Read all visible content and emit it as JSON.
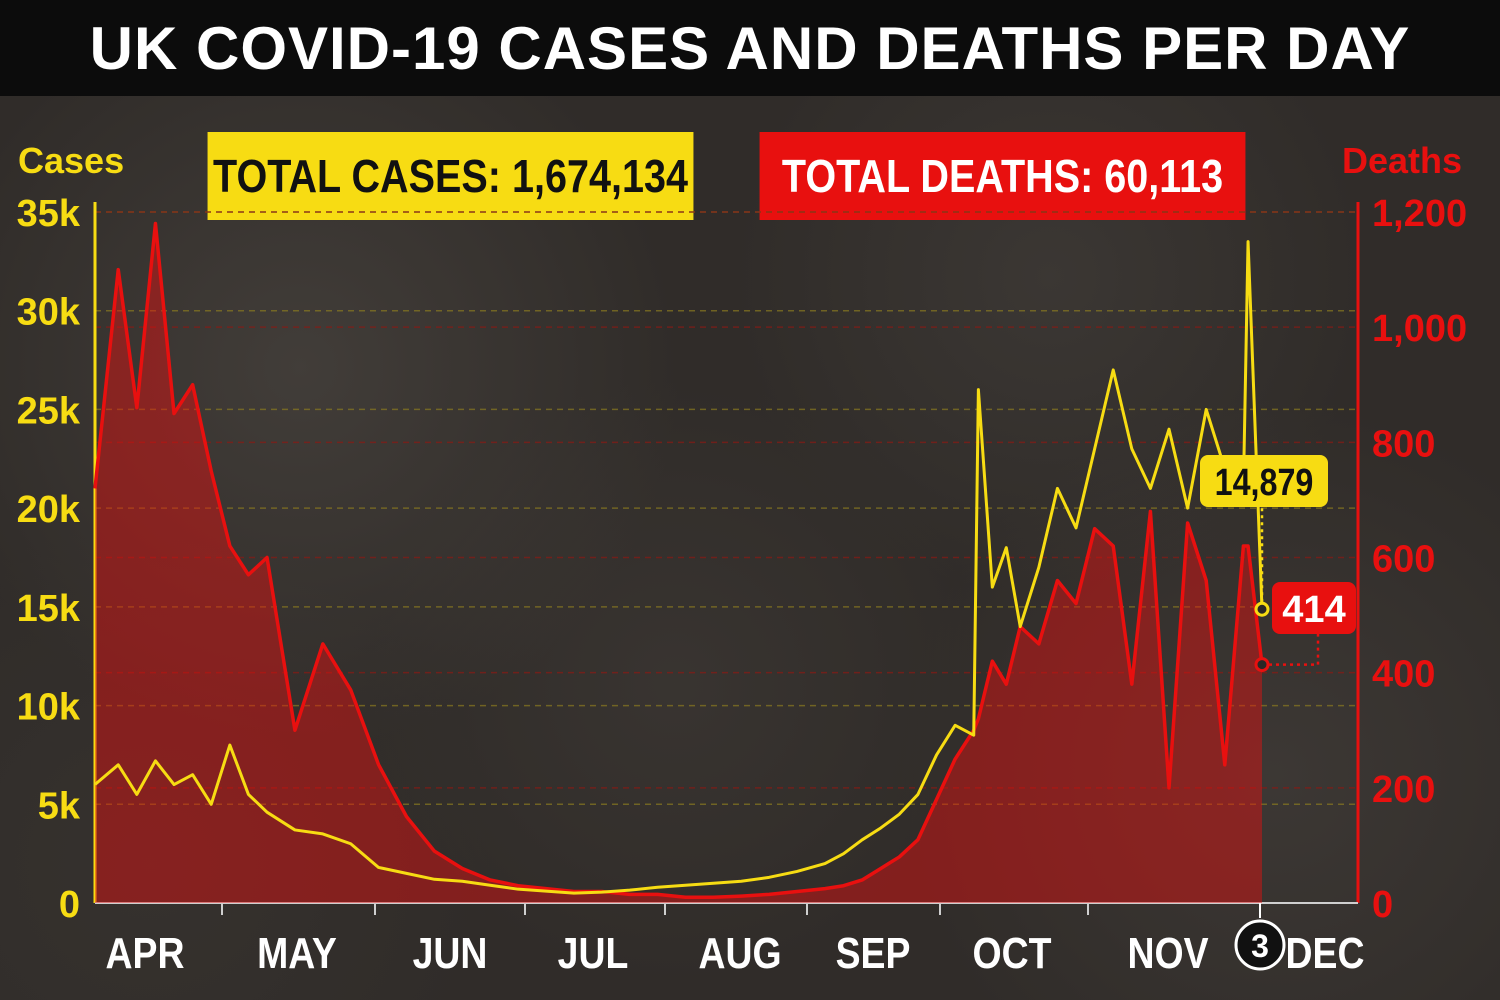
{
  "title": "UK COVID-19 CASES AND DEATHS PER DAY",
  "totals": {
    "cases": "TOTAL CASES: 1,674,134",
    "deaths": "TOTAL DEATHS: 60,113"
  },
  "colors": {
    "cases": "#f7dc13",
    "deaths": "#e8100f",
    "title_bg": "#0c0c0c",
    "background": "#302c29"
  },
  "chart_data": {
    "type": "line",
    "title": "UK COVID-19 CASES AND DEATHS PER DAY",
    "x_axis": {
      "months": [
        "APR",
        "MAY",
        "JUN",
        "JUL",
        "AUG",
        "SEP",
        "OCT",
        "NOV",
        "DEC"
      ],
      "marked_day": "3",
      "range": [
        "2020-03-27",
        "2020-12-03"
      ]
    },
    "y_axis_left": {
      "label": "Cases",
      "ticks": [
        "0",
        "5k",
        "10k",
        "15k",
        "20k",
        "25k",
        "30k",
        "35k"
      ],
      "range": [
        0,
        35000
      ]
    },
    "y_axis_right": {
      "label": "Deaths",
      "ticks": [
        "0",
        "200",
        "400",
        "600",
        "800",
        "1,000",
        "1,200"
      ],
      "range": [
        0,
        1200
      ]
    },
    "grid": true,
    "series": [
      {
        "name": "Cases",
        "axis": "left",
        "points": [
          [
            "2020-03-27",
            6000
          ],
          [
            "2020-04-01",
            7000
          ],
          [
            "2020-04-05",
            5500
          ],
          [
            "2020-04-09",
            7200
          ],
          [
            "2020-04-13",
            6000
          ],
          [
            "2020-04-17",
            6500
          ],
          [
            "2020-04-21",
            5000
          ],
          [
            "2020-04-25",
            8000
          ],
          [
            "2020-04-29",
            5500
          ],
          [
            "2020-05-03",
            4600
          ],
          [
            "2020-05-09",
            3700
          ],
          [
            "2020-05-15",
            3500
          ],
          [
            "2020-05-21",
            3000
          ],
          [
            "2020-05-27",
            1800
          ],
          [
            "2020-06-02",
            1500
          ],
          [
            "2020-06-08",
            1200
          ],
          [
            "2020-06-14",
            1100
          ],
          [
            "2020-06-20",
            900
          ],
          [
            "2020-06-26",
            700
          ],
          [
            "2020-07-02",
            600
          ],
          [
            "2020-07-08",
            500
          ],
          [
            "2020-07-14",
            550
          ],
          [
            "2020-07-20",
            650
          ],
          [
            "2020-07-26",
            800
          ],
          [
            "2020-08-01",
            900
          ],
          [
            "2020-08-07",
            1000
          ],
          [
            "2020-08-13",
            1100
          ],
          [
            "2020-08-19",
            1300
          ],
          [
            "2020-08-25",
            1600
          ],
          [
            "2020-08-31",
            2000
          ],
          [
            "2020-09-04",
            2500
          ],
          [
            "2020-09-08",
            3200
          ],
          [
            "2020-09-12",
            3800
          ],
          [
            "2020-09-16",
            4500
          ],
          [
            "2020-09-20",
            5500
          ],
          [
            "2020-09-24",
            7500
          ],
          [
            "2020-09-28",
            9000
          ],
          [
            "2020-10-02",
            8500
          ],
          [
            "2020-10-03",
            26000
          ],
          [
            "2020-10-06",
            16000
          ],
          [
            "2020-10-09",
            18000
          ],
          [
            "2020-10-12",
            14000
          ],
          [
            "2020-10-16",
            17000
          ],
          [
            "2020-10-20",
            21000
          ],
          [
            "2020-10-24",
            19000
          ],
          [
            "2020-10-28",
            23000
          ],
          [
            "2020-11-01",
            27000
          ],
          [
            "2020-11-05",
            23000
          ],
          [
            "2020-11-09",
            21000
          ],
          [
            "2020-11-13",
            24000
          ],
          [
            "2020-11-17",
            20000
          ],
          [
            "2020-11-21",
            25000
          ],
          [
            "2020-11-25",
            22000
          ],
          [
            "2020-11-29",
            21000
          ],
          [
            "2020-11-30",
            33500
          ],
          [
            "2020-12-03",
            14879
          ]
        ]
      },
      {
        "name": "Deaths",
        "axis": "right",
        "points": [
          [
            "2020-03-27",
            720
          ],
          [
            "2020-04-01",
            1100
          ],
          [
            "2020-04-05",
            860
          ],
          [
            "2020-04-09",
            1180
          ],
          [
            "2020-04-13",
            850
          ],
          [
            "2020-04-17",
            900
          ],
          [
            "2020-04-21",
            750
          ],
          [
            "2020-04-25",
            620
          ],
          [
            "2020-04-29",
            570
          ],
          [
            "2020-05-03",
            600
          ],
          [
            "2020-05-09",
            300
          ],
          [
            "2020-05-15",
            450
          ],
          [
            "2020-05-21",
            370
          ],
          [
            "2020-05-27",
            240
          ],
          [
            "2020-06-02",
            150
          ],
          [
            "2020-06-08",
            90
          ],
          [
            "2020-06-14",
            60
          ],
          [
            "2020-06-20",
            40
          ],
          [
            "2020-06-26",
            30
          ],
          [
            "2020-07-02",
            25
          ],
          [
            "2020-07-08",
            20
          ],
          [
            "2020-07-14",
            20
          ],
          [
            "2020-07-20",
            15
          ],
          [
            "2020-07-26",
            15
          ],
          [
            "2020-08-01",
            10
          ],
          [
            "2020-08-07",
            10
          ],
          [
            "2020-08-13",
            12
          ],
          [
            "2020-08-19",
            15
          ],
          [
            "2020-08-25",
            20
          ],
          [
            "2020-08-31",
            25
          ],
          [
            "2020-09-04",
            30
          ],
          [
            "2020-09-08",
            40
          ],
          [
            "2020-09-12",
            60
          ],
          [
            "2020-09-16",
            80
          ],
          [
            "2020-09-20",
            110
          ],
          [
            "2020-09-24",
            180
          ],
          [
            "2020-09-28",
            250
          ],
          [
            "2020-10-02",
            300
          ],
          [
            "2020-10-03",
            320
          ],
          [
            "2020-10-06",
            420
          ],
          [
            "2020-10-09",
            380
          ],
          [
            "2020-10-12",
            480
          ],
          [
            "2020-10-16",
            450
          ],
          [
            "2020-10-20",
            560
          ],
          [
            "2020-10-24",
            520
          ],
          [
            "2020-10-28",
            650
          ],
          [
            "2020-11-01",
            620
          ],
          [
            "2020-11-05",
            380
          ],
          [
            "2020-11-09",
            680
          ],
          [
            "2020-11-13",
            200
          ],
          [
            "2020-11-17",
            660
          ],
          [
            "2020-11-21",
            560
          ],
          [
            "2020-11-25",
            240
          ],
          [
            "2020-11-29",
            620
          ],
          [
            "2020-11-30",
            620
          ],
          [
            "2020-12-03",
            414
          ]
        ]
      }
    ],
    "annotations": {
      "cases_last": "14,879",
      "deaths_last": "414"
    }
  }
}
